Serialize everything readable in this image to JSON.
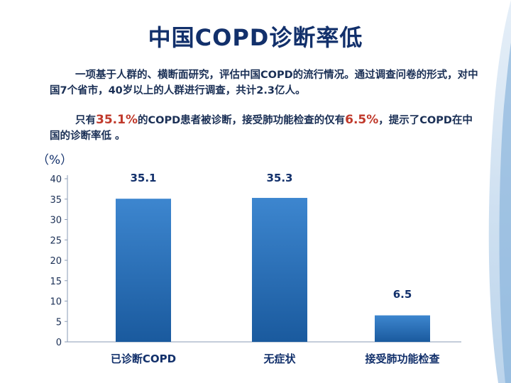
{
  "title": "中国COPD诊断率低",
  "paragraph1": "一项基于人群的、横断面研究，评估中国COPD的流行情况。通过调查问卷的形式，对中国7个省市，40岁以上的人群进行调查，共计2.3亿人。",
  "paragraph2": {
    "part1": "只有",
    "value1": "35.1%",
    "part2": "的COPD患者被诊断，接受肺功能检查的仅有",
    "value2": "6.5%",
    "part3": "，提示了COPD在中国的诊断率低 。"
  },
  "colors": {
    "bar_top": "#3d86cf",
    "bar_bottom": "#1a5a9e",
    "highlight": "#c0392b"
  },
  "chart_data": {
    "type": "bar",
    "unit_label": "（%）",
    "categories": [
      "已诊断COPD",
      "无症状",
      "接受肺功能检查"
    ],
    "values": [
      35.1,
      35.3,
      6.5
    ],
    "value_labels": [
      "35.1",
      "35.3",
      "6.5"
    ],
    "yticks": [
      0,
      5,
      10,
      15,
      20,
      25,
      30,
      35,
      40
    ],
    "ylim": [
      0,
      40
    ],
    "grid": false
  }
}
